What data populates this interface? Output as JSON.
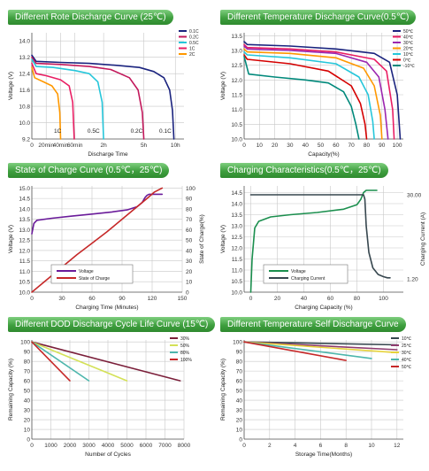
{
  "colors": {
    "header_green": "#3f9f3f",
    "grid": "#c8c8c8",
    "axis": "#555555"
  },
  "chart_data": [
    {
      "id": "c1",
      "type": "line",
      "title": "Different Rote Discharge Curve (25℃)",
      "xlabel": "Discharge Time",
      "ylabel": "Voltage (V)",
      "xlim": [
        0,
        10.6
      ],
      "ylim": [
        9.2,
        14.4
      ],
      "xticks": [
        0,
        1,
        2,
        3,
        5,
        7.8,
        10
      ],
      "xtick_labels": [
        "0",
        "20min",
        "40min",
        "60min",
        "2h",
        "5h",
        "10h"
      ],
      "yticks": [
        9.2,
        10.0,
        10.8,
        11.6,
        12.4,
        13.2,
        14.0
      ],
      "ytick_labels": [
        "9.2",
        "10.0",
        "10.8",
        "11.6",
        "12.4",
        "13.2",
        "14.0"
      ],
      "series": [
        {
          "name": "0.1C",
          "color": "#1a237e",
          "x": [
            0,
            0.3,
            2,
            4,
            6,
            7.5,
            8.5,
            9.2,
            9.6,
            9.8,
            9.9
          ],
          "y": [
            13.3,
            13.0,
            12.95,
            12.9,
            12.8,
            12.7,
            12.5,
            12.2,
            11.6,
            10.6,
            9.2
          ]
        },
        {
          "name": "0.2C",
          "color": "#c2185b",
          "x": [
            0,
            0.3,
            2,
            4,
            5.5,
            6.8,
            7.4,
            7.7,
            7.8
          ],
          "y": [
            13.2,
            12.9,
            12.85,
            12.75,
            12.6,
            12.2,
            11.6,
            10.5,
            9.2
          ]
        },
        {
          "name": "0.5C",
          "color": "#26c6da",
          "x": [
            0,
            0.3,
            1.5,
            3,
            4,
            4.6,
            4.9,
            5.0
          ],
          "y": [
            13.1,
            12.75,
            12.7,
            12.55,
            12.4,
            12.0,
            11.0,
            9.2
          ]
        },
        {
          "name": "1C",
          "color": "#e91e63",
          "x": [
            0,
            0.3,
            1,
            2,
            2.6,
            2.85,
            2.95
          ],
          "y": [
            12.9,
            12.4,
            12.3,
            12.1,
            11.8,
            11.0,
            9.2
          ]
        },
        {
          "name": "2C",
          "color": "#ff9800",
          "x": [
            0,
            0.2,
            0.8,
            1.4,
            1.8,
            1.95,
            2.0
          ],
          "y": [
            12.7,
            12.2,
            12.0,
            11.8,
            11.4,
            10.5,
            9.2
          ]
        }
      ],
      "annotations": [
        {
          "text": "1C",
          "x": 1.8,
          "y": 9.5
        },
        {
          "text": "0.5C",
          "x": 4.3,
          "y": 9.5
        },
        {
          "text": "0.2C",
          "x": 7.3,
          "y": 9.5
        },
        {
          "text": "0.1C",
          "x": 9.3,
          "y": 9.5
        }
      ],
      "legend_position": "top-right"
    },
    {
      "id": "c2",
      "type": "line",
      "title": "Different Temperature Discharge Curve(0.5℃)",
      "xlabel": "Capacity(%)",
      "ylabel": "Voltage (V)",
      "xlim": [
        0,
        104
      ],
      "ylim": [
        10.0,
        13.6
      ],
      "xticks": [
        0,
        10,
        20,
        30,
        40,
        50,
        60,
        70,
        80,
        90,
        100
      ],
      "xtick_labels": [
        "0",
        "10",
        "20",
        "30",
        "40",
        "50",
        "60",
        "70",
        "80",
        "90",
        "100"
      ],
      "yticks": [
        10.0,
        10.5,
        11.0,
        11.5,
        12.0,
        12.5,
        13.0,
        13.5
      ],
      "ytick_labels": [
        "10.0",
        "10.5",
        "11.0",
        "11.5",
        "12.0",
        "12.5",
        "13.0",
        "13.5"
      ],
      "series": [
        {
          "name": "50℃",
          "color": "#1a237e",
          "x": [
            0,
            2,
            30,
            60,
            85,
            95,
            100,
            102
          ],
          "y": [
            13.3,
            13.2,
            13.15,
            13.05,
            12.9,
            12.6,
            11.5,
            10.0
          ]
        },
        {
          "name": "40℃",
          "color": "#e91e63",
          "x": [
            0,
            2,
            30,
            60,
            85,
            93,
            97,
            98
          ],
          "y": [
            13.2,
            13.1,
            13.05,
            12.95,
            12.7,
            12.3,
            11.0,
            10.0
          ]
        },
        {
          "name": "30℃",
          "color": "#9c27b0",
          "x": [
            0,
            2,
            30,
            60,
            80,
            88,
            92,
            94
          ],
          "y": [
            13.15,
            13.05,
            13.0,
            12.9,
            12.6,
            12.1,
            11.0,
            10.0
          ]
        },
        {
          "name": "20℃",
          "color": "#ff9800",
          "x": [
            0,
            2,
            30,
            60,
            78,
            85,
            89,
            90
          ],
          "y": [
            13.05,
            12.95,
            12.9,
            12.75,
            12.4,
            11.8,
            10.8,
            10.0
          ]
        },
        {
          "name": "10℃",
          "color": "#26c6da",
          "x": [
            0,
            2,
            30,
            60,
            75,
            81,
            84,
            85
          ],
          "y": [
            12.95,
            12.85,
            12.75,
            12.55,
            12.1,
            11.5,
            10.6,
            10.0
          ]
        },
        {
          "name": "0℃",
          "color": "#d50000",
          "x": [
            0,
            2,
            30,
            55,
            70,
            76,
            79,
            80
          ],
          "y": [
            12.85,
            12.7,
            12.55,
            12.3,
            11.8,
            11.2,
            10.5,
            10.0
          ]
        },
        {
          "name": "-10℃",
          "color": "#00897b",
          "x": [
            0,
            3,
            20,
            40,
            55,
            65,
            70,
            73,
            75
          ],
          "y": [
            12.8,
            12.2,
            12.1,
            12.0,
            11.9,
            11.6,
            11.1,
            10.5,
            10.0
          ]
        }
      ],
      "legend_position": "top-right"
    },
    {
      "id": "c3",
      "type": "line",
      "title": "State of Charge Curve (0.5℃，25℃)",
      "xlabel": "Charging Time (Minutes)",
      "ylabel": "Voltage (V)",
      "y2label": "State of Charge(%)",
      "xlim": [
        0,
        150
      ],
      "ylim": [
        10.0,
        15.1
      ],
      "y2lim": [
        0,
        102
      ],
      "xticks": [
        0,
        30,
        60,
        90,
        120,
        150
      ],
      "xtick_labels": [
        "0",
        "30",
        "60",
        "90",
        "120",
        "150"
      ],
      "yticks": [
        10.0,
        10.5,
        11.0,
        11.5,
        12.0,
        12.5,
        13.0,
        13.5,
        14.0,
        14.5,
        15.0
      ],
      "ytick_labels": [
        "10.0",
        "10.5",
        "11.0",
        "11.5",
        "12.0",
        "12.5",
        "13.0",
        "13.5",
        "14.0",
        "14.5",
        "15.0"
      ],
      "y2ticks": [
        0,
        10,
        20,
        30,
        40,
        50,
        60,
        70,
        80,
        90,
        100
      ],
      "y2tick_labels": [
        "0",
        "10",
        "20",
        "30",
        "40",
        "50",
        "60",
        "70",
        "80",
        "90",
        "100"
      ],
      "series": [
        {
          "name": "Voltage",
          "axis": "left",
          "color": "#6a1b9a",
          "x": [
            0,
            2,
            5,
            20,
            40,
            60,
            80,
            95,
            105,
            110,
            113,
            115,
            117,
            120,
            130
          ],
          "y": [
            12.8,
            13.3,
            13.45,
            13.55,
            13.65,
            13.75,
            13.85,
            13.95,
            14.1,
            14.3,
            14.55,
            14.65,
            14.7,
            14.7,
            14.7
          ]
        },
        {
          "name": "State of Charge",
          "axis": "right",
          "color": "#c62828",
          "x": [
            0,
            15,
            30,
            45,
            60,
            75,
            90,
            105,
            115,
            122,
            130
          ],
          "y": [
            0,
            12,
            24,
            36,
            47,
            58,
            70,
            82,
            90,
            96,
            100
          ]
        }
      ],
      "legend_position": "bottom-left"
    },
    {
      "id": "c4",
      "type": "line",
      "title": "Charging Characteristics(0.5℃，25℃)",
      "xlabel": "Charging Capacity (%)",
      "ylabel": "Voltage (V)",
      "y2label": "Charging Current (A)",
      "xlim": [
        -5,
        115
      ],
      "ylim": [
        10.0,
        14.8
      ],
      "xticks": [
        0,
        20,
        40,
        60,
        80,
        100
      ],
      "xtick_labels": [
        "0",
        "20",
        "40",
        "60",
        "80",
        "100"
      ],
      "yticks": [
        10.0,
        10.5,
        11.0,
        11.5,
        12.0,
        12.5,
        13.0,
        13.5,
        14.0,
        14.5
      ],
      "ytick_labels": [
        "10.0",
        "10.5",
        "11.0",
        "11.5",
        "12.0",
        "12.5",
        "13.0",
        "13.5",
        "14.0",
        "14.5"
      ],
      "y2_marks": [
        "30.00",
        "1.20"
      ],
      "series": [
        {
          "name": "Voltage",
          "axis": "left",
          "color": "#1b8f4e",
          "x": [
            0,
            1,
            3,
            6,
            15,
            30,
            50,
            70,
            80,
            83,
            85,
            87,
            95
          ],
          "y": [
            10.0,
            11.5,
            12.9,
            13.2,
            13.4,
            13.5,
            13.6,
            13.75,
            13.95,
            14.2,
            14.5,
            14.6,
            14.6
          ]
        },
        {
          "name": "Charging Current",
          "axis": "right",
          "color": "#37474f",
          "x": [
            0,
            85,
            86,
            87,
            89,
            92,
            96,
            100,
            103,
            105
          ],
          "y": [
            14.4,
            14.4,
            14.2,
            13.0,
            11.8,
            11.1,
            10.8,
            10.7,
            10.65,
            10.65
          ]
        }
      ],
      "legend_position": "bottom-left"
    },
    {
      "id": "c5",
      "type": "line",
      "title": "Different DOD Discharge Cycle Life Curve (15℃)",
      "xlabel": "Number of Cycles",
      "ylabel": "Remaining Capacity (%)",
      "xlim": [
        0,
        8000
      ],
      "ylim": [
        0,
        102
      ],
      "xticks": [
        0,
        1000,
        2000,
        3000,
        4000,
        5000,
        6000,
        7000,
        8000
      ],
      "xtick_labels": [
        "0",
        "1000",
        "2000",
        "3000",
        "4000",
        "5000",
        "6000",
        "7000",
        "8000"
      ],
      "yticks": [
        0,
        10,
        20,
        30,
        40,
        50,
        60,
        70,
        80,
        90,
        100
      ],
      "ytick_labels": [
        "0",
        "10",
        "20",
        "30",
        "40",
        "50",
        "60",
        "70",
        "80",
        "90",
        "100"
      ],
      "series": [
        {
          "name": "30%",
          "color": "#7b1f3a",
          "x": [
            0,
            7800
          ],
          "y": [
            100,
            60
          ]
        },
        {
          "name": "50%",
          "color": "#d4e157",
          "x": [
            0,
            5000
          ],
          "y": [
            100,
            60
          ]
        },
        {
          "name": "80%",
          "color": "#4db6ac",
          "x": [
            0,
            3000
          ],
          "y": [
            100,
            60
          ]
        },
        {
          "name": "100%",
          "color": "#c62828",
          "x": [
            0,
            2000
          ],
          "y": [
            100,
            60
          ]
        }
      ],
      "legend_position": "top-right"
    },
    {
      "id": "c6",
      "type": "line",
      "title": "Different Temperature Self Discharge Curve",
      "xlabel": "Storage Time(Months)",
      "ylabel": "Remaining Capacity (%)",
      "xlim": [
        0,
        12.5
      ],
      "ylim": [
        0,
        102
      ],
      "xticks": [
        0,
        2,
        4,
        6,
        8,
        10,
        12
      ],
      "xtick_labels": [
        "0",
        "2",
        "4",
        "6",
        "8",
        "10",
        "12"
      ],
      "yticks": [
        0,
        10,
        20,
        30,
        40,
        50,
        60,
        70,
        80,
        90,
        100
      ],
      "ytick_labels": [
        "0",
        "10",
        "20",
        "30",
        "40",
        "50",
        "60",
        "70",
        "80",
        "90",
        "100"
      ],
      "series": [
        {
          "name": "10℃",
          "color": "#37474f",
          "x": [
            0,
            12
          ],
          "y": [
            100,
            97
          ]
        },
        {
          "name": "25℃",
          "color": "#8e3b6e",
          "x": [
            0,
            12
          ],
          "y": [
            100,
            92
          ]
        },
        {
          "name": "30℃",
          "color": "#e6d23a",
          "x": [
            0,
            12
          ],
          "y": [
            100,
            89
          ]
        },
        {
          "name": "40℃",
          "color": "#4db6ac",
          "x": [
            0,
            10
          ],
          "y": [
            100,
            83
          ]
        },
        {
          "name": "50℃",
          "color": "#c62828",
          "x": [
            0,
            8
          ],
          "y": [
            100,
            81
          ]
        }
      ],
      "legend_position": "top-right"
    }
  ]
}
